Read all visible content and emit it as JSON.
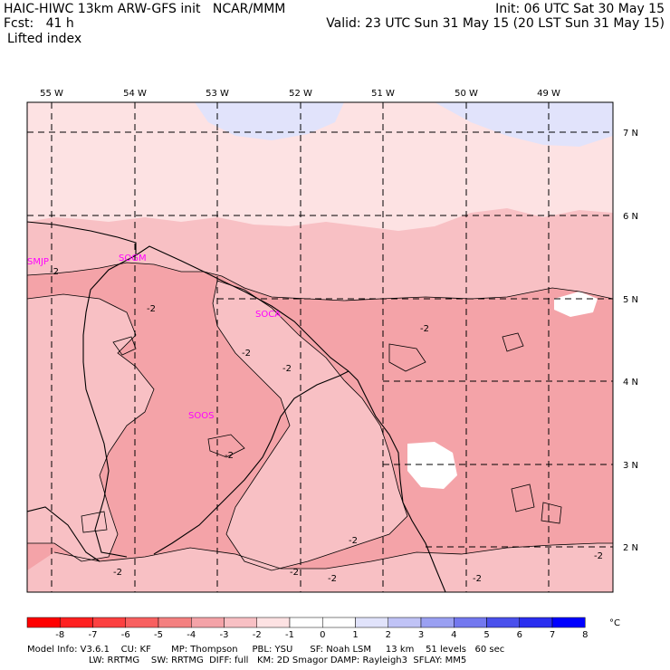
{
  "header": {
    "left_line1": "HAIC-HIWC 13km ARW-GFS init   NCAR/MMM",
    "left_line2": "Fcst:   41 h",
    "left_line3": "Lifted index",
    "right_line1": "Init: 06 UTC Sat 30 May 15",
    "right_line2": "Valid: 23 UTC Sun 31 May 15 (20 LST Sun 31 May 15)"
  },
  "map": {
    "lon_labels": [
      "55 W",
      "54 W",
      "53 W",
      "52 W",
      "51 W",
      "50 W",
      "49 W"
    ],
    "lat_labels": [
      "7 N",
      "6 N",
      "5 N",
      "4 N",
      "3 N",
      "2 N"
    ],
    "stations": [
      "SMJP",
      "SOGM",
      "SOCA",
      "SOOS"
    ],
    "contour_label": "-2",
    "colors": {
      "li_minus3": "#f4a3a8",
      "li_minus2": "#f8c0c4",
      "li_minus1": "#fde2e3",
      "li_zero": "#ffffff",
      "li_plus1": "#e1e3fb",
      "station": "#ff00ff"
    }
  },
  "colorbar": {
    "labels": [
      "-8",
      "-7",
      "-6",
      "-5",
      "-4",
      "-3",
      "-2",
      "-1",
      "0",
      "1",
      "2",
      "3",
      "4",
      "5",
      "6",
      "7",
      "8"
    ],
    "unit": "°C",
    "colors": [
      "#ff0000",
      "#ff2020",
      "#fc4040",
      "#f86060",
      "#f48080",
      "#f4a3a8",
      "#f8c0c4",
      "#fde2e3",
      "#ffffff",
      "#ffffff",
      "#e1e3fb",
      "#c0c3f6",
      "#9aa0f2",
      "#7378ef",
      "#4a50ec",
      "#2a2ef0",
      "#0000ff"
    ]
  },
  "footer": {
    "line1": "Model Info: V3.6.1    CU: KF       MP: Thompson     PBL: YSU      SF: Noah LSM     13 km    51 levels   60 sec",
    "line2": "LW: RRTMG    SW: RRTMG  DIFF: full   KM: 2D Smagor DAMP: Rayleigh3  SFLAY: MM5"
  }
}
